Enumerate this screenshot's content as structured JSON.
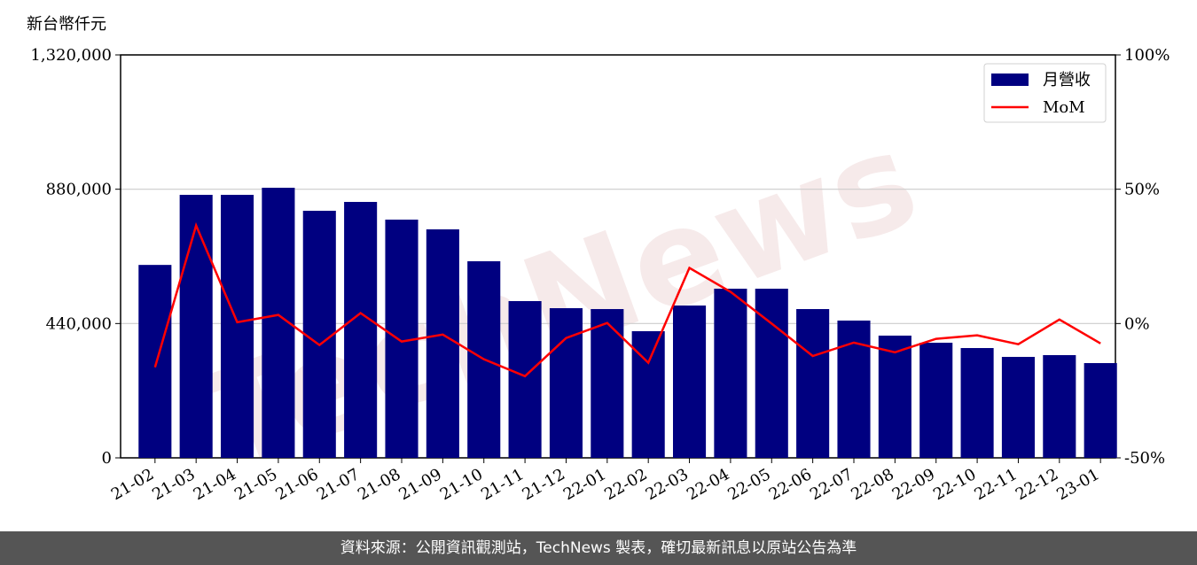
{
  "chart_data": {
    "type": "bar-line",
    "y_label": "新台幣仟元",
    "watermark": "TechNews",
    "categories": [
      "21-02",
      "21-03",
      "21-04",
      "21-05",
      "21-06",
      "21-07",
      "21-08",
      "21-09",
      "21-10",
      "21-11",
      "21-12",
      "22-01",
      "22-02",
      "22-03",
      "22-04",
      "22-05",
      "22-06",
      "22-07",
      "22-08",
      "22-09",
      "22-10",
      "22-11",
      "22-12",
      "23-01"
    ],
    "series": [
      {
        "name": "月營收",
        "color": "#000080",
        "type": "bar",
        "values": [
          632000,
          861600,
          861600,
          884800,
          809400,
          838400,
          780400,
          748500,
          644000,
          513500,
          490300,
          487400,
          414900,
          499000,
          554100,
          554100,
          487400,
          449700,
          400400,
          377100,
          359700,
          330700,
          336500,
          310400
        ]
      },
      {
        "name": "MoM",
        "color": "#ff0000",
        "type": "line",
        "axis": "y2",
        "values": [
          -16.3,
          36.5,
          0.5,
          3.2,
          -8.0,
          3.9,
          -6.7,
          -4.1,
          -13.3,
          -19.6,
          -5.4,
          0.2,
          -14.6,
          20.7,
          11.8,
          0,
          -12.1,
          -7.1,
          -10.7,
          -5.7,
          -4.4,
          -7.7,
          1.5,
          -7.4
        ]
      }
    ],
    "ylim": [
      0,
      1320000
    ],
    "yticks": [
      0,
      {
        "value": 440000,
        "label": "440,000"
      },
      {
        "value": 880000,
        "label": "880,000"
      },
      {
        "value": 1320000,
        "label": "1,320,000"
      }
    ],
    "y2lim": [
      -50,
      100
    ],
    "y2ticks": [
      {
        "value": -50,
        "label": "-50%"
      },
      {
        "value": 0,
        "label": "0%"
      },
      {
        "value": 50,
        "label": "50%"
      },
      {
        "value": 100,
        "label": "100%"
      }
    ],
    "grid": true,
    "legend": "upper right"
  },
  "footer": "資料來源：公開資訊觀測站，TechNews 製表，確切最新訊息以原站公告為準"
}
